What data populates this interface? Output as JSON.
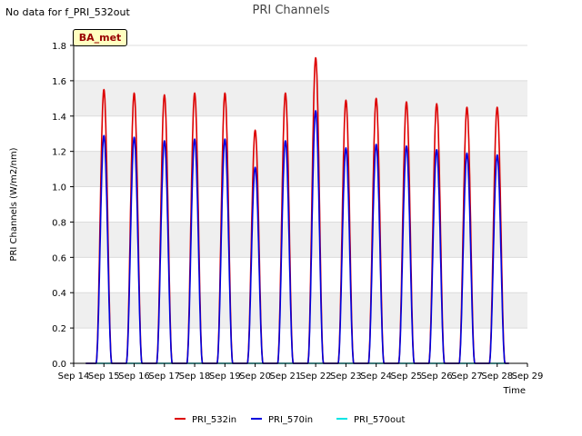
{
  "header": {
    "nodata_text": "No data for f_PRI_532out",
    "site_label": "BA_met"
  },
  "chart_data": {
    "type": "line",
    "title": "PRI Channels",
    "xlabel": "Time",
    "ylabel": "PRI Channels (W/m2/nm)",
    "ylim": [
      0,
      1.8
    ],
    "yticks": [
      0.0,
      0.2,
      0.4,
      0.6,
      0.8,
      1.0,
      1.2,
      1.4,
      1.6,
      1.8
    ],
    "ytick_labels": [
      "0.0",
      "0.2",
      "0.4",
      "0.6",
      "0.8",
      "1.0",
      "1.2",
      "1.4",
      "1.6",
      "1.8"
    ],
    "xlim": [
      14,
      29
    ],
    "xticks": [
      14,
      15,
      16,
      17,
      18,
      19,
      20,
      21,
      22,
      23,
      24,
      25,
      26,
      27,
      28,
      29
    ],
    "xtick_labels": [
      "Sep 14",
      "Sep 15",
      "Sep 16",
      "Sep 17",
      "Sep 18",
      "Sep 19",
      "Sep 20",
      "Sep 21",
      "Sep 22",
      "Sep 23",
      "Sep 24",
      "Sep 25",
      "Sep 26",
      "Sep 27",
      "Sep 28",
      "Sep 29"
    ],
    "grid": "horizontal bands",
    "legend_position": "bottom-center",
    "daily_peak_days": [
      "Sep 15",
      "Sep 16",
      "Sep 17",
      "Sep 18",
      "Sep 19",
      "Sep 20",
      "Sep 21",
      "Sep 22",
      "Sep 23",
      "Sep 24",
      "Sep 25",
      "Sep 26",
      "Sep 27",
      "Sep 28"
    ],
    "daily_peak_time": [
      15.0,
      16.0,
      17.0,
      18.0,
      19.0,
      20.0,
      21.0,
      22.0,
      23.0,
      24.0,
      25.0,
      26.0,
      27.0,
      28.0
    ],
    "series": [
      {
        "name": "PRI_532in",
        "color": "#dd0000",
        "daily_peaks": [
          1.55,
          1.53,
          1.52,
          1.53,
          1.53,
          1.32,
          1.53,
          1.73,
          1.49,
          1.5,
          1.48,
          1.47,
          1.45,
          1.45
        ]
      },
      {
        "name": "PRI_570in",
        "color": "#0000dd",
        "daily_peaks": [
          1.29,
          1.28,
          1.26,
          1.27,
          1.27,
          1.11,
          1.26,
          1.43,
          1.22,
          1.24,
          1.23,
          1.21,
          1.19,
          1.18
        ]
      },
      {
        "name": "PRI_570out",
        "color": "#00e5e5",
        "daily_peaks": [
          0,
          0,
          0,
          0,
          0,
          0,
          0,
          0,
          0,
          0,
          0,
          0,
          0,
          0
        ]
      }
    ]
  }
}
